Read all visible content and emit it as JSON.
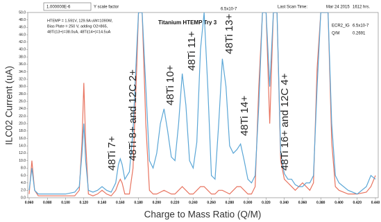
{
  "header": {
    "scale_value": "1.000000E-6",
    "scale_label": "Y scale factor",
    "scan_label": "Last Scan Time:",
    "scan_date": "Mar 24 2015",
    "scan_time": "1612 hrs."
  },
  "info": {
    "lines": [
      "HTEMP = 1.591V, 129.9A uW=1090W,",
      "Bias Plate = 250 V, adding O2=865,",
      "48Ti(13+)=38.0uA, 48Ti(14+)=14.5uA"
    ],
    "plot_title": "Titanium HTEMP Try 3",
    "top_value": "6.5x10-7",
    "gauge_name": "ECR2_IG",
    "gauge_value": "6.5x10-7",
    "qm_label": "Q/M",
    "qm_value": "0.2691"
  },
  "chart_data": {
    "type": "line",
    "ylabel": "ILC02 Current (uA)",
    "xlabel": "Charge to Mass Ratio (Q/M)",
    "annotations": [
      "48Ti 7+",
      "48Ti 8+ and 12C 2+",
      "48Ti 10+",
      "48Ti 11+",
      "48Ti 13+",
      "48Ti 14+",
      "48Ti 16+ and 12C 4+"
    ],
    "x": [
      0.06,
      0.063,
      0.066,
      0.07,
      0.08,
      0.09,
      0.1,
      0.11,
      0.115,
      0.118,
      0.12,
      0.122,
      0.125,
      0.13,
      0.135,
      0.14,
      0.145,
      0.15,
      0.155,
      0.158,
      0.16,
      0.162,
      0.165,
      0.17,
      0.174,
      0.178,
      0.18,
      0.184,
      0.188,
      0.192,
      0.196,
      0.2,
      0.204,
      0.208,
      0.212,
      0.216,
      0.22,
      0.224,
      0.228,
      0.232,
      0.236,
      0.24,
      0.244,
      0.248,
      0.252,
      0.256,
      0.26,
      0.264,
      0.268,
      0.272,
      0.276,
      0.28,
      0.284,
      0.288,
      0.292,
      0.296,
      0.3,
      0.304,
      0.308,
      0.312,
      0.316,
      0.32,
      0.324,
      0.328,
      0.332,
      0.336,
      0.34,
      0.344,
      0.348,
      0.352,
      0.356,
      0.36,
      0.364,
      0.368,
      0.372,
      0.376,
      0.38,
      0.384,
      0.388,
      0.392,
      0.396,
      0.4,
      0.41,
      0.42,
      0.43,
      0.435,
      0.44
    ],
    "series": [
      {
        "color": "#e8735f",
        "values": [
          1,
          10,
          2,
          0.5,
          0.5,
          0.5,
          0.5,
          0.5,
          2,
          15,
          31,
          15,
          1,
          0.5,
          1,
          2,
          1,
          0.5,
          2,
          4,
          5,
          4,
          1,
          1,
          8,
          35,
          50,
          50,
          20,
          2,
          1,
          1,
          1.5,
          2,
          1.5,
          1,
          1,
          2,
          3,
          2,
          1,
          1,
          2,
          3,
          3,
          2,
          1,
          1,
          2,
          2,
          1.5,
          1,
          2,
          3,
          3,
          2,
          1,
          1,
          3,
          30,
          50,
          50,
          20,
          50,
          50,
          10,
          5,
          4,
          3,
          2,
          3,
          4,
          3,
          2,
          4,
          35,
          50,
          50,
          50,
          15,
          3,
          2,
          1,
          1,
          1.5,
          3,
          6
        ]
      },
      {
        "color": "#5aa6d6",
        "values": [
          2,
          8,
          2,
          1,
          1,
          1,
          1,
          1.5,
          3,
          12,
          20,
          10,
          2,
          1.5,
          2,
          3,
          2,
          1.5,
          4,
          9,
          10.5,
          9,
          5,
          7,
          18,
          40,
          50,
          50,
          30,
          10,
          8,
          12,
          20,
          24,
          18,
          11,
          10,
          20,
          33.5,
          25,
          10,
          8,
          15,
          40,
          50,
          30,
          6,
          5,
          20,
          37.5,
          30,
          14,
          12,
          13,
          14.5,
          10,
          5,
          4,
          6,
          25,
          50,
          50,
          30,
          50,
          50,
          12,
          6.5,
          5,
          5,
          3.5,
          3,
          3,
          4,
          4,
          6,
          30,
          50,
          50,
          50,
          20,
          6,
          4,
          2,
          1,
          3,
          6,
          5
        ]
      }
    ],
    "xlim": [
      0.06,
      0.44
    ],
    "ylim": [
      0,
      50
    ],
    "xticks": [
      {
        "value": 0.06,
        "label": "0.060"
      },
      {
        "value": 0.08,
        "label": "0.080"
      },
      {
        "value": 0.1,
        "label": "0.100"
      },
      {
        "value": 0.12,
        "label": "0.120"
      },
      {
        "value": 0.14,
        "label": "0.140"
      },
      {
        "value": 0.16,
        "label": "0.160"
      },
      {
        "value": 0.18,
        "label": "0.180"
      },
      {
        "value": 0.2,
        "label": "0.200"
      },
      {
        "value": 0.22,
        "label": "0.220"
      },
      {
        "value": 0.24,
        "label": "0.240"
      },
      {
        "value": 0.26,
        "label": "0.260"
      },
      {
        "value": 0.28,
        "label": "0.280"
      },
      {
        "value": 0.3,
        "label": "0.300"
      },
      {
        "value": 0.32,
        "label": "0.320"
      },
      {
        "value": 0.34,
        "label": "0.340"
      },
      {
        "value": 0.36,
        "label": "0.360"
      },
      {
        "value": 0.38,
        "label": "0.380"
      },
      {
        "value": 0.4,
        "label": "0.400"
      },
      {
        "value": 0.42,
        "label": "0.420"
      },
      {
        "value": 0.44,
        "label": "0.440"
      }
    ],
    "yticks": [
      {
        "value": 0,
        "label": "0.0"
      },
      {
        "value": 2,
        "label": "2.0"
      },
      {
        "value": 4,
        "label": "4.0"
      },
      {
        "value": 6,
        "label": "6.0"
      },
      {
        "value": 8,
        "label": "8.0"
      },
      {
        "value": 10,
        "label": "10.0"
      },
      {
        "value": 12,
        "label": "12.0"
      },
      {
        "value": 14,
        "label": "14.0"
      },
      {
        "value": 16,
        "label": "16.0"
      },
      {
        "value": 18,
        "label": "18.0"
      },
      {
        "value": 20,
        "label": "20.0"
      },
      {
        "value": 22,
        "label": "22.0"
      },
      {
        "value": 24,
        "label": "24.0"
      },
      {
        "value": 26,
        "label": "26.0"
      },
      {
        "value": 28,
        "label": "28.0"
      },
      {
        "value": 30,
        "label": "30.0"
      },
      {
        "value": 32,
        "label": "32.0"
      },
      {
        "value": 34,
        "label": "34.0"
      },
      {
        "value": 36,
        "label": "36.0"
      },
      {
        "value": 38,
        "label": "38.0"
      },
      {
        "value": 40,
        "label": "40.0"
      },
      {
        "value": 42,
        "label": "42.0"
      },
      {
        "value": 44,
        "label": "44.0"
      },
      {
        "value": 46,
        "label": "46.0"
      },
      {
        "value": 48,
        "label": "48.0"
      },
      {
        "value": 50,
        "label": "50.0"
      }
    ]
  }
}
